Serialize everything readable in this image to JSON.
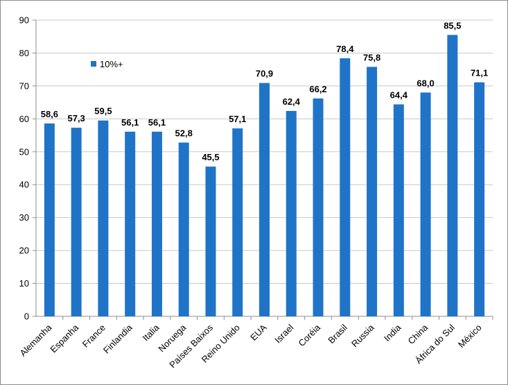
{
  "chart_data": {
    "type": "bar",
    "categories": [
      "Alemanha",
      "Espanha",
      "France",
      "Finlandia",
      "Italia",
      "Noruega",
      "Países Baixos",
      "Reino Unido",
      "EUA",
      "Israel",
      "Coréia",
      "Brasil",
      "Russia",
      "India",
      "China",
      "África do Sul",
      "México"
    ],
    "series": [
      {
        "name": "10%+",
        "values": [
          58.6,
          57.3,
          59.5,
          56.1,
          56.1,
          52.8,
          45.5,
          57.1,
          70.9,
          62.4,
          66.2,
          78.4,
          75.8,
          64.4,
          68.0,
          85.5,
          71.1
        ],
        "labels": [
          "58,6",
          "57,3",
          "59,5",
          "56,1",
          "56,1",
          "52,8",
          "45,5",
          "57,1",
          "70,9",
          "62,4",
          "66,2",
          "78,4",
          "75,8",
          "64,4",
          "68,0",
          "85,5",
          "71,1"
        ],
        "color": "#1f74c8"
      }
    ],
    "ylim": [
      0,
      90
    ],
    "yticks": [
      "0",
      "10",
      "20",
      "30",
      "40",
      "50",
      "60",
      "70",
      "80",
      "90"
    ],
    "grid": true,
    "legend_position": "top-left",
    "title": "",
    "xlabel": "",
    "ylabel": ""
  },
  "colors": {
    "bar": "#1f74c8",
    "grid": "#c8c8c8",
    "axis": "#8c8c8c"
  }
}
